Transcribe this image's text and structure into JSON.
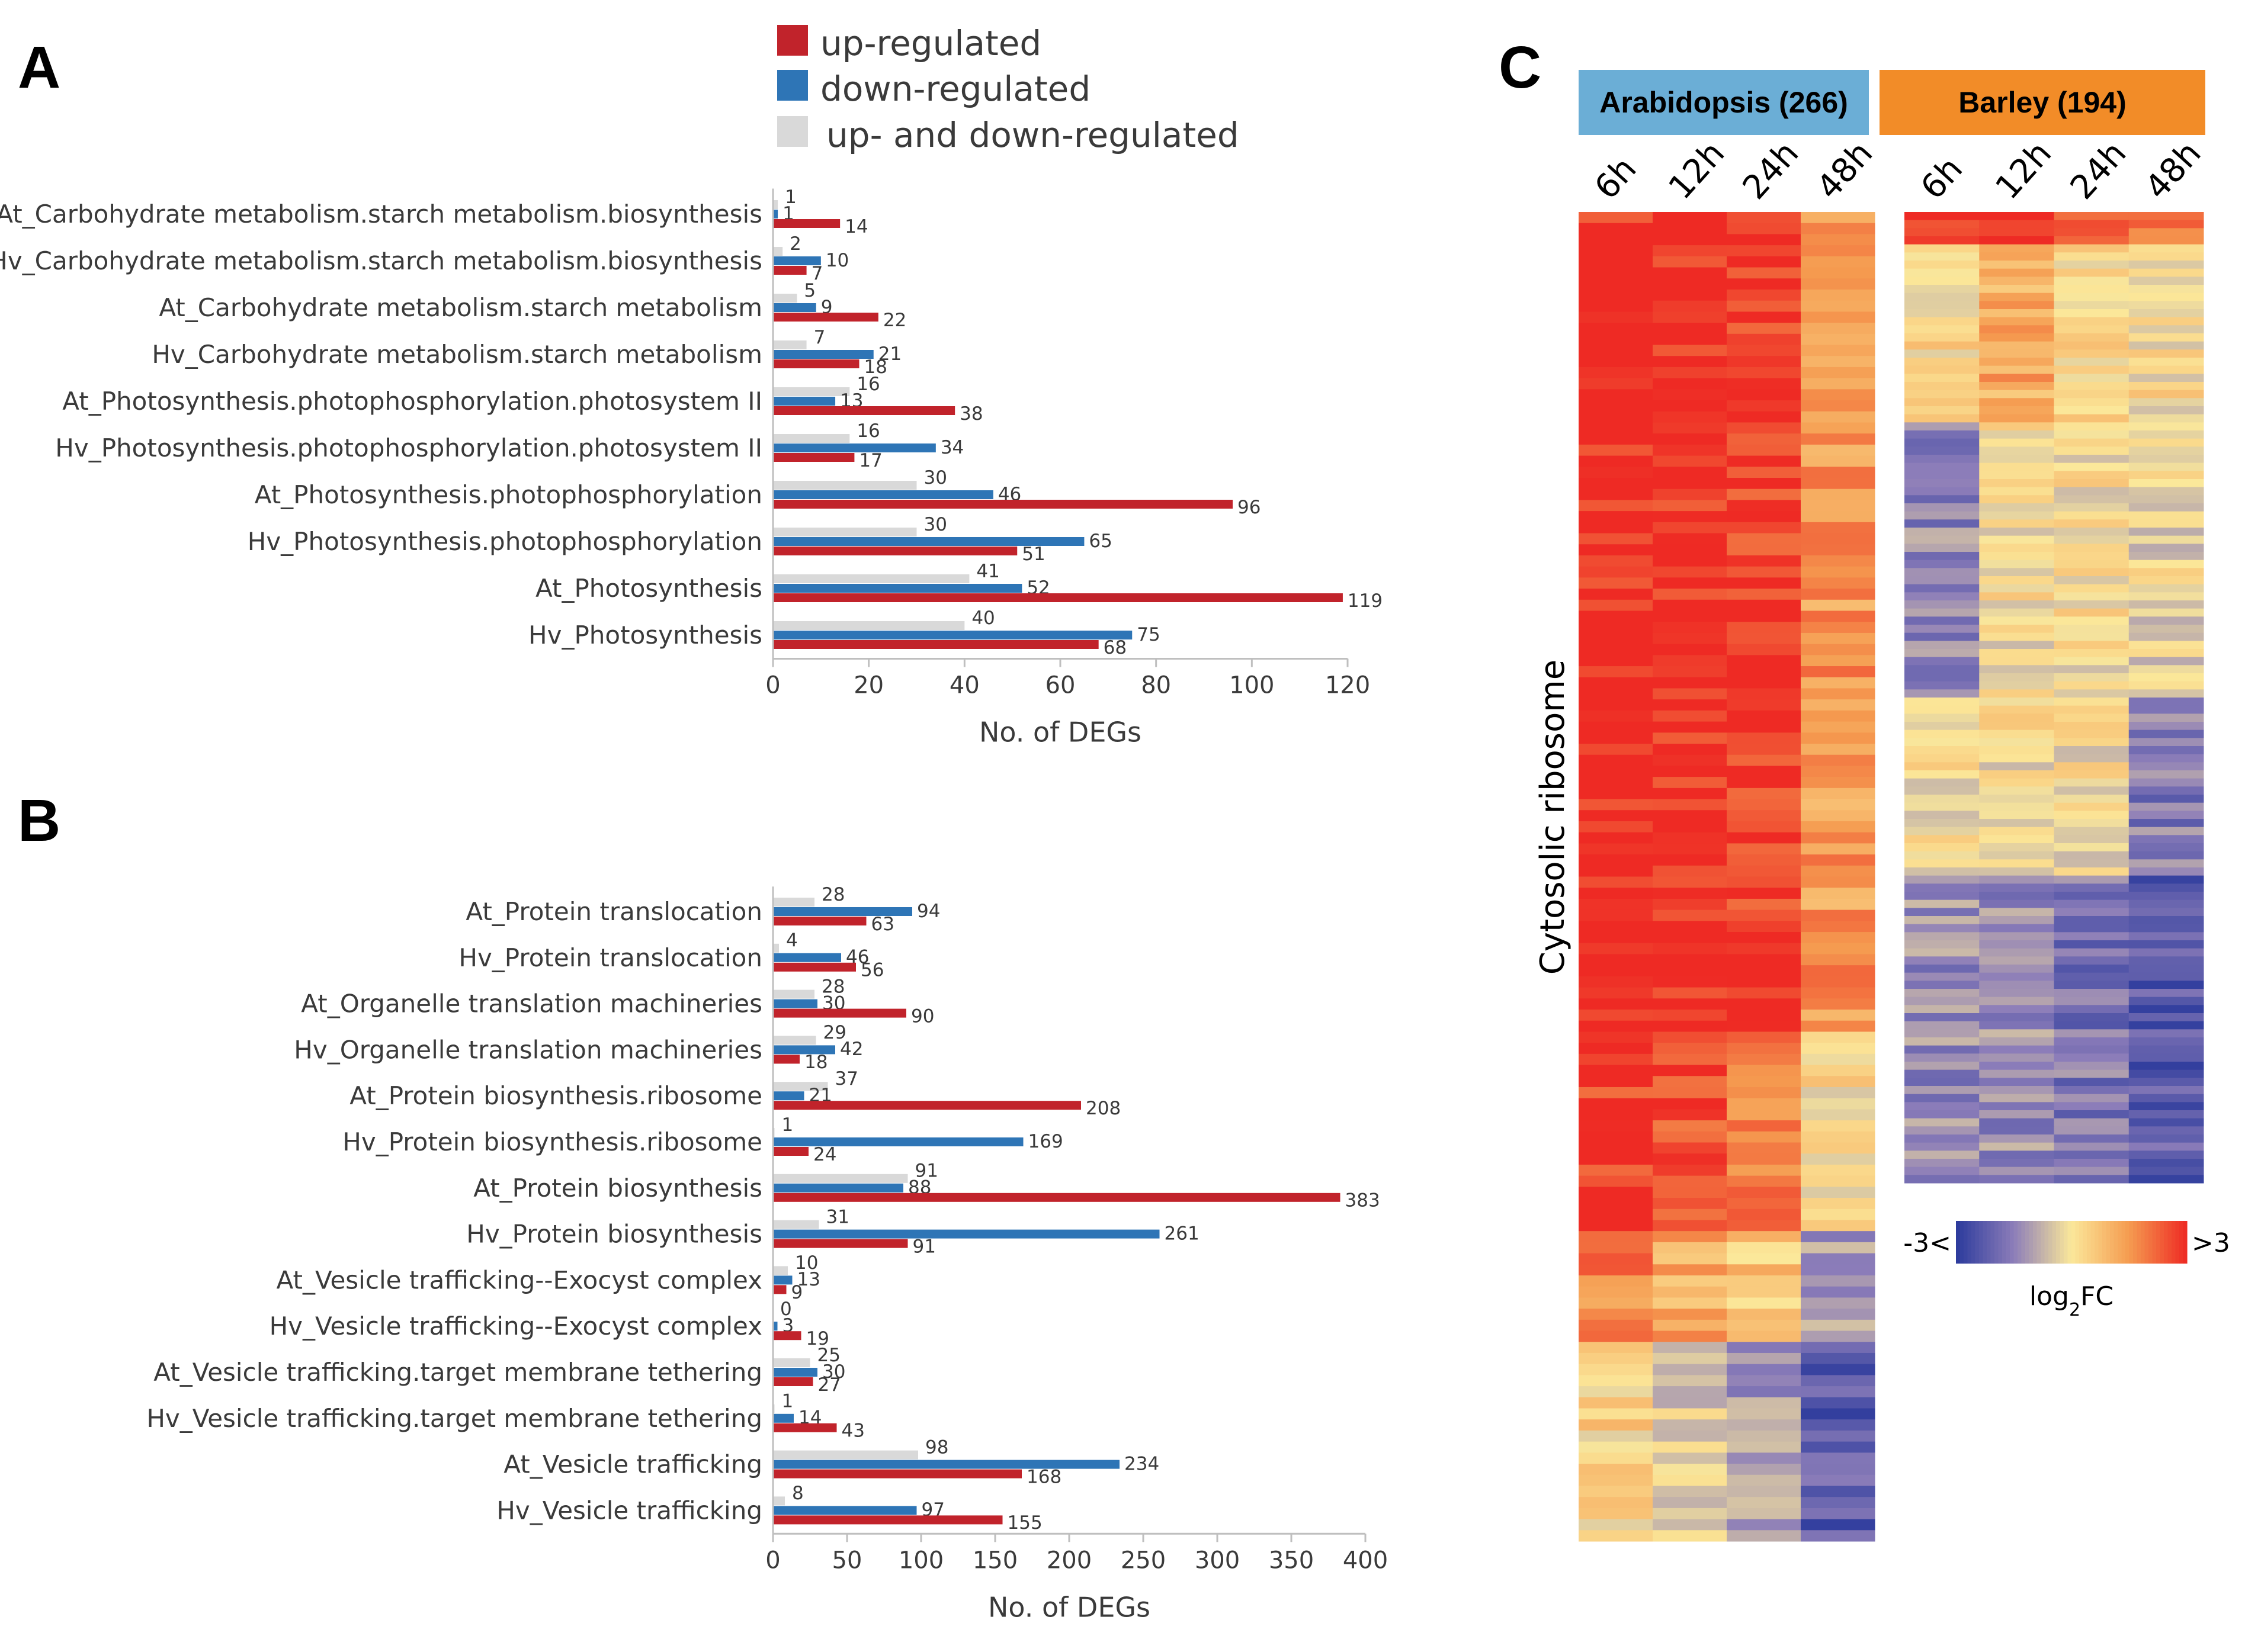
{
  "colors": {
    "up": "#c1232b",
    "down": "#2e75b6",
    "both": "#d9d9d9",
    "arabidopsis_header": "#6baed6",
    "barley_header": "#f28c28",
    "cmap_low": "#2b3a9c",
    "cmap_mid": "#fbe89a",
    "cmap_high": "#ee2a24"
  },
  "legend": {
    "up_label": "up-regulated",
    "down_label": "down-regulated",
    "both_label": "up- and down-regulated"
  },
  "panels": {
    "a": "A",
    "b": "B",
    "c": "C"
  },
  "chart_data": [
    {
      "type": "bar",
      "orientation": "horizontal",
      "panel": "A",
      "categories": [
        "At_Carbohydrate metabolism.starch metabolism.biosynthesis",
        "Hv_Carbohydrate metabolism.starch metabolism.biosynthesis",
        "At_Carbohydrate metabolism.starch metabolism",
        "Hv_Carbohydrate metabolism.starch metabolism",
        "At_Photosynthesis.photophosphorylation.photosystem II",
        "Hv_Photosynthesis.photophosphorylation.photosystem II",
        "At_Photosynthesis.photophosphorylation",
        "Hv_Photosynthesis.photophosphorylation",
        "At_Photosynthesis",
        "Hv_Photosynthesis"
      ],
      "series": [
        {
          "name": "up- and down-regulated",
          "key": "both",
          "values": [
            1,
            2,
            5,
            7,
            16,
            16,
            30,
            30,
            41,
            40
          ]
        },
        {
          "name": "down-regulated",
          "key": "down",
          "values": [
            1,
            10,
            9,
            21,
            13,
            34,
            46,
            65,
            52,
            75
          ]
        },
        {
          "name": "up-regulated",
          "key": "up",
          "values": [
            14,
            7,
            22,
            18,
            38,
            17,
            96,
            51,
            119,
            68
          ]
        }
      ],
      "xlabel": "No. of DEGs",
      "xlim": [
        0,
        120
      ],
      "xticks": [
        0,
        20,
        40,
        60,
        80,
        100,
        120
      ]
    },
    {
      "type": "bar",
      "orientation": "horizontal",
      "panel": "B",
      "categories": [
        "At_Protein translocation",
        "Hv_Protein translocation",
        "At_Organelle translation machineries",
        "Hv_Organelle translation machineries",
        "At_Protein biosynthesis.ribosome",
        "Hv_Protein biosynthesis.ribosome",
        "At_Protein biosynthesis",
        "Hv_Protein biosynthesis",
        "At_Vesicle trafficking--Exocyst complex",
        "Hv_Vesicle trafficking--Exocyst complex",
        "At_Vesicle trafficking.target membrane tethering",
        "Hv_Vesicle trafficking.target membrane tethering",
        "At_Vesicle trafficking",
        "Hv_Vesicle trafficking"
      ],
      "series": [
        {
          "name": "up- and down-regulated",
          "key": "both",
          "values": [
            28,
            4,
            28,
            29,
            37,
            1,
            91,
            31,
            10,
            0,
            25,
            1,
            98,
            8
          ]
        },
        {
          "name": "down-regulated",
          "key": "down",
          "values": [
            94,
            46,
            30,
            42,
            21,
            169,
            88,
            261,
            13,
            3,
            30,
            14,
            234,
            97
          ]
        },
        {
          "name": "up-regulated",
          "key": "up",
          "values": [
            63,
            56,
            90,
            18,
            208,
            24,
            383,
            91,
            9,
            19,
            27,
            43,
            168,
            155
          ]
        }
      ],
      "xlabel": "No. of DEGs",
      "xlim": [
        0,
        400
      ],
      "xticks": [
        0,
        50,
        100,
        150,
        200,
        250,
        300,
        350,
        400
      ]
    },
    {
      "type": "heatmap",
      "panel": "C",
      "row_group_label": "Cytosolic ribosome",
      "colorbar": {
        "min_label": "-3<",
        "max_label": ">3",
        "title": "log2FC",
        "title_base": "log",
        "title_sub": "2",
        "title_rest": "FC",
        "range": [
          -3,
          3
        ]
      },
      "blocks": [
        {
          "title": "Arabidopsis (266)",
          "columns": [
            "6h",
            "12h",
            "24h",
            "48h"
          ],
          "n_genes": 266,
          "pattern": [
            {
              "rows_fraction": 0.62,
              "values": [
                3,
                3,
                2.8,
                1.5
              ]
            },
            {
              "rows_fraction": 0.15,
              "values": [
                2.8,
                2.6,
                1.8,
                0.2
              ]
            },
            {
              "rows_fraction": 0.08,
              "values": [
                1.8,
                1.2,
                0.6,
                -1.2
              ]
            },
            {
              "rows_fraction": 0.15,
              "values": [
                0.3,
                -0.3,
                -1.0,
                -2.2
              ]
            }
          ]
        },
        {
          "title": "Barley (194)",
          "columns": [
            "6h",
            "12h",
            "24h",
            "48h"
          ],
          "n_genes": 194,
          "pattern": [
            {
              "rows_fraction": 0.03,
              "values": [
                2.5,
                2.8,
                2.5,
                2.0
              ]
            },
            {
              "rows_fraction": 0.18,
              "values": [
                0.2,
                1.2,
                0.1,
                0.1
              ]
            },
            {
              "rows_fraction": 0.28,
              "values": [
                -1.4,
                0.0,
                0.0,
                -0.2
              ]
            },
            {
              "rows_fraction": 0.18,
              "values": [
                0.0,
                0.0,
                0.0,
                -1.6
              ]
            },
            {
              "rows_fraction": 0.33,
              "values": [
                -1.3,
                -1.3,
                -1.7,
                -2.2
              ]
            }
          ]
        }
      ]
    }
  ]
}
